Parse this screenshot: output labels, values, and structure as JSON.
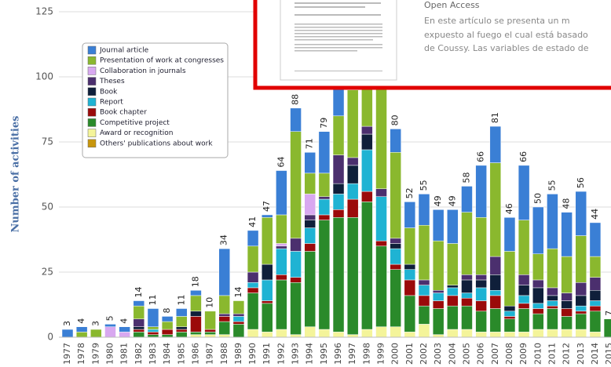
{
  "chart_data": {
    "type": "stacked-bar",
    "ylabel": "Number of activities",
    "categories": [
      "1977",
      "1978",
      "1979",
      "1980",
      "1981",
      "1982",
      "1983",
      "1984",
      "1985",
      "1986",
      "1987",
      "1988",
      "1989",
      "1990",
      "1991",
      "1992",
      "1993",
      "1994",
      "1995",
      "1996",
      "1997",
      "1998",
      "1999",
      "2000",
      "2001",
      "2002",
      "2003",
      "2004",
      "2005",
      "2006",
      "2007",
      "2008",
      "2009",
      "2010",
      "2011",
      "2012",
      "2013",
      "2014",
      "2015"
    ],
    "ylim": [
      0,
      125
    ],
    "yticks": [
      0,
      25,
      50,
      75,
      100,
      125
    ],
    "grid": true,
    "series": [
      {
        "name": "Journal article",
        "color": "#3a7fd5",
        "values": [
          3,
          2,
          0,
          1,
          2,
          2,
          7,
          2,
          3,
          2,
          0,
          18,
          0,
          6,
          1,
          17,
          9,
          8,
          16,
          15,
          10,
          10,
          0,
          9,
          10,
          12,
          12,
          13,
          10,
          20,
          14,
          13,
          21,
          18,
          21,
          17,
          17,
          13,
          0
        ]
      },
      {
        "name": "Presentation of work at congresses",
        "color": "#8ab82e",
        "values": [
          0,
          2,
          3,
          0,
          0,
          5,
          1,
          3,
          4,
          6,
          7,
          7,
          5,
          10,
          18,
          11,
          41,
          8,
          9,
          15,
          26,
          17,
          50,
          33,
          14,
          21,
          19,
          16,
          24,
          22,
          36,
          21,
          21,
          10,
          15,
          14,
          18,
          8,
          0
        ]
      },
      {
        "name": "Collaboration in journals",
        "color": "#d8a8f0",
        "values": [
          0,
          0,
          0,
          4,
          2,
          0,
          0,
          0,
          0,
          0,
          0,
          0,
          0,
          0,
          0,
          1,
          0,
          8,
          0,
          0,
          0,
          0,
          0,
          0,
          0,
          0,
          0,
          0,
          0,
          0,
          0,
          0,
          0,
          0,
          0,
          0,
          0,
          0,
          0
        ]
      },
      {
        "name": "Theses",
        "color": "#4b2f6e",
        "values": [
          0,
          0,
          0,
          0,
          0,
          3,
          0,
          0,
          0,
          0,
          0,
          1,
          1,
          4,
          0,
          1,
          5,
          2,
          1,
          11,
          3,
          3,
          3,
          2,
          0,
          2,
          1,
          0,
          2,
          2,
          7,
          0,
          4,
          3,
          3,
          3,
          5,
          5,
          0
        ]
      },
      {
        "name": "Book",
        "color": "#0f1f3a",
        "values": [
          0,
          0,
          0,
          0,
          0,
          1,
          0,
          0,
          1,
          2,
          0,
          0,
          0,
          0,
          6,
          0,
          0,
          3,
          0,
          4,
          7,
          6,
          0,
          2,
          2,
          0,
          0,
          1,
          5,
          3,
          6,
          2,
          4,
          6,
          2,
          3,
          4,
          4,
          0
        ]
      },
      {
        "name": "Report",
        "color": "#1fb3d3",
        "values": [
          0,
          0,
          0,
          0,
          0,
          0,
          1,
          0,
          0,
          0,
          0,
          0,
          2,
          2,
          8,
          10,
          10,
          6,
          6,
          6,
          6,
          16,
          17,
          6,
          4,
          4,
          3,
          3,
          2,
          5,
          2,
          2,
          3,
          2,
          2,
          0,
          2,
          2,
          0
        ]
      },
      {
        "name": "Book chapter",
        "color": "#9b0a0a",
        "values": [
          0,
          0,
          0,
          0,
          0,
          1,
          1,
          2,
          1,
          6,
          1,
          2,
          1,
          2,
          1,
          2,
          2,
          3,
          2,
          3,
          7,
          4,
          2,
          2,
          6,
          4,
          3,
          4,
          3,
          4,
          5,
          1,
          2,
          2,
          1,
          3,
          1,
          2,
          0
        ]
      },
      {
        "name": "Competitive project",
        "color": "#2a8a2a",
        "values": [
          0,
          0,
          0,
          0,
          0,
          2,
          1,
          1,
          2,
          1,
          1,
          5,
          5,
          14,
          11,
          19,
          20,
          29,
          42,
          44,
          45,
          49,
          31,
          22,
          14,
          7,
          10,
          9,
          9,
          8,
          9,
          5,
          9,
          6,
          8,
          5,
          6,
          8,
          7
        ]
      },
      {
        "name": "Award or recognition",
        "color": "#f4f49a",
        "values": [
          0,
          0,
          0,
          0,
          0,
          0,
          0,
          0,
          0,
          1,
          1,
          1,
          0,
          3,
          2,
          3,
          1,
          4,
          3,
          2,
          1,
          3,
          4,
          4,
          2,
          5,
          1,
          3,
          3,
          2,
          2,
          2,
          2,
          3,
          3,
          3,
          3,
          2,
          0
        ]
      },
      {
        "name": "Others' publications about work",
        "color": "#c8960c",
        "values": [
          0,
          0,
          0,
          0,
          0,
          0,
          0,
          0,
          0,
          0,
          0,
          0,
          0,
          0,
          0,
          0,
          0,
          0,
          0,
          0,
          0,
          0,
          0,
          0,
          0,
          0,
          0,
          0,
          0,
          0,
          0,
          0,
          0,
          0,
          0,
          0,
          0,
          0,
          0
        ]
      }
    ],
    "totals": [
      3,
      4,
      3,
      5,
      4,
      14,
      11,
      8,
      11,
      18,
      10,
      34,
      14,
      41,
      47,
      64,
      88,
      71,
      79,
      null,
      null,
      null,
      null,
      80,
      52,
      55,
      49,
      49,
      58,
      66,
      81,
      46,
      66,
      50,
      55,
      48,
      56,
      44,
      7
    ]
  },
  "popup": {
    "access": "Open Access",
    "abstract_lines": [
      "En este artículo se presenta un m",
      "expuesto al fuego el cual está basado",
      "de Coussy. Las variables de estado de"
    ]
  }
}
